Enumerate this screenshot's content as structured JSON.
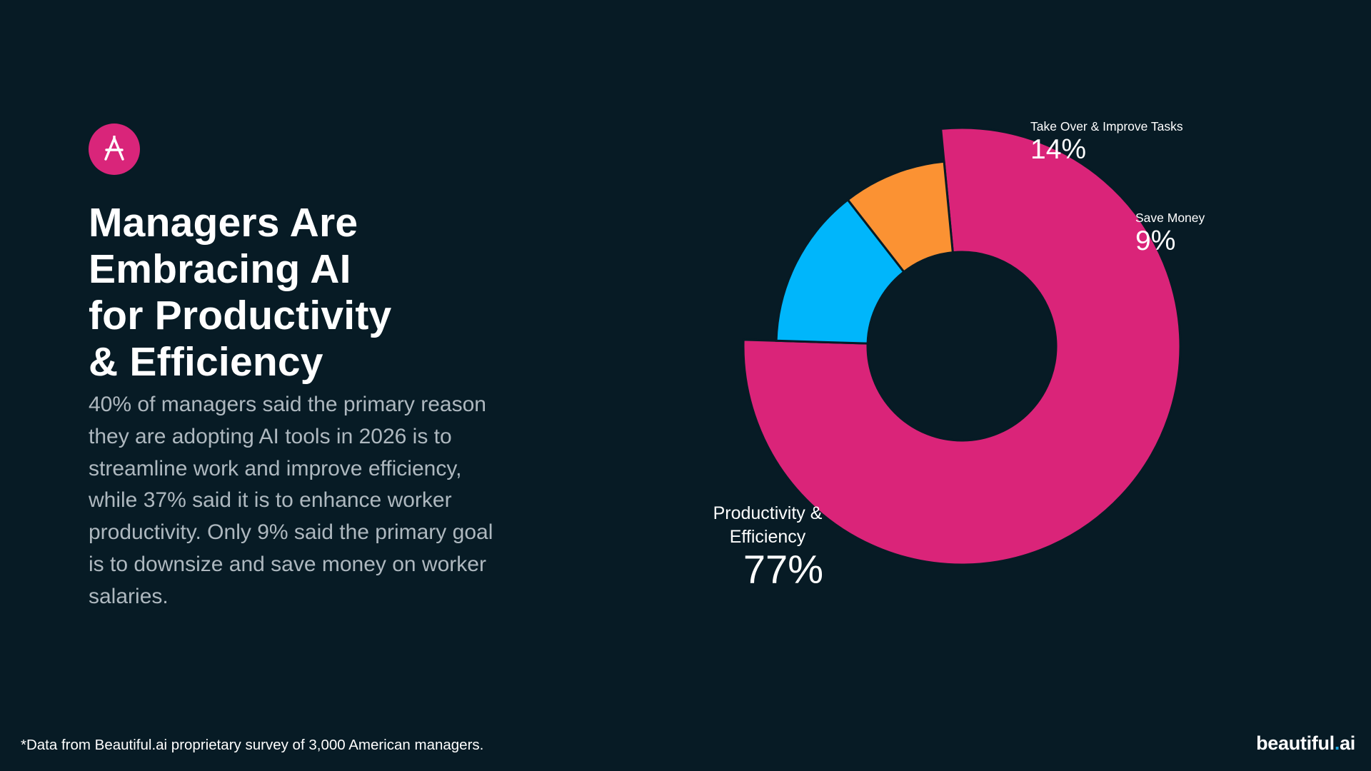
{
  "slide": {
    "logo_icon": "beautiful-ai-logo-icon",
    "title_lines": [
      "Managers Are",
      "Embracing AI",
      "for Productivity",
      "& Efficiency"
    ],
    "body_lines": [
      "40% of managers said the primary reason",
      "they are adopting AI tools in 2026 is to",
      "streamline work and improve efficiency,",
      "while 37% said it is to enhance worker",
      "productivity. Only 9% said the primary goal",
      "is to downsize and save money on worker",
      "salaries."
    ],
    "footnote": "*Data from Beautiful.ai proprietary survey of 3,000 American managers.",
    "brand": {
      "name": "beautiful",
      "dot": ".",
      "suffix": "ai"
    },
    "colors": {
      "background": "#071b25",
      "accent": "#d9257a"
    }
  },
  "chart_data": {
    "type": "pie",
    "donut": true,
    "slices": [
      {
        "label": "Productivity & Efficiency",
        "label_lines": [
          "Productivity &",
          "Efficiency"
        ],
        "value": 77,
        "display": "77%",
        "color": "#da2479"
      },
      {
        "label": "Take Over & Improve Tasks",
        "label_lines": [
          "Take Over & Improve Tasks"
        ],
        "value": 14,
        "display": "14%",
        "color": "#00b6fb"
      },
      {
        "label": "Save Money",
        "label_lines": [
          "Save Money"
        ],
        "value": 9,
        "display": "9%",
        "color": "#fb9233"
      }
    ],
    "highlighted_slice": "Productivity & Efficiency"
  }
}
